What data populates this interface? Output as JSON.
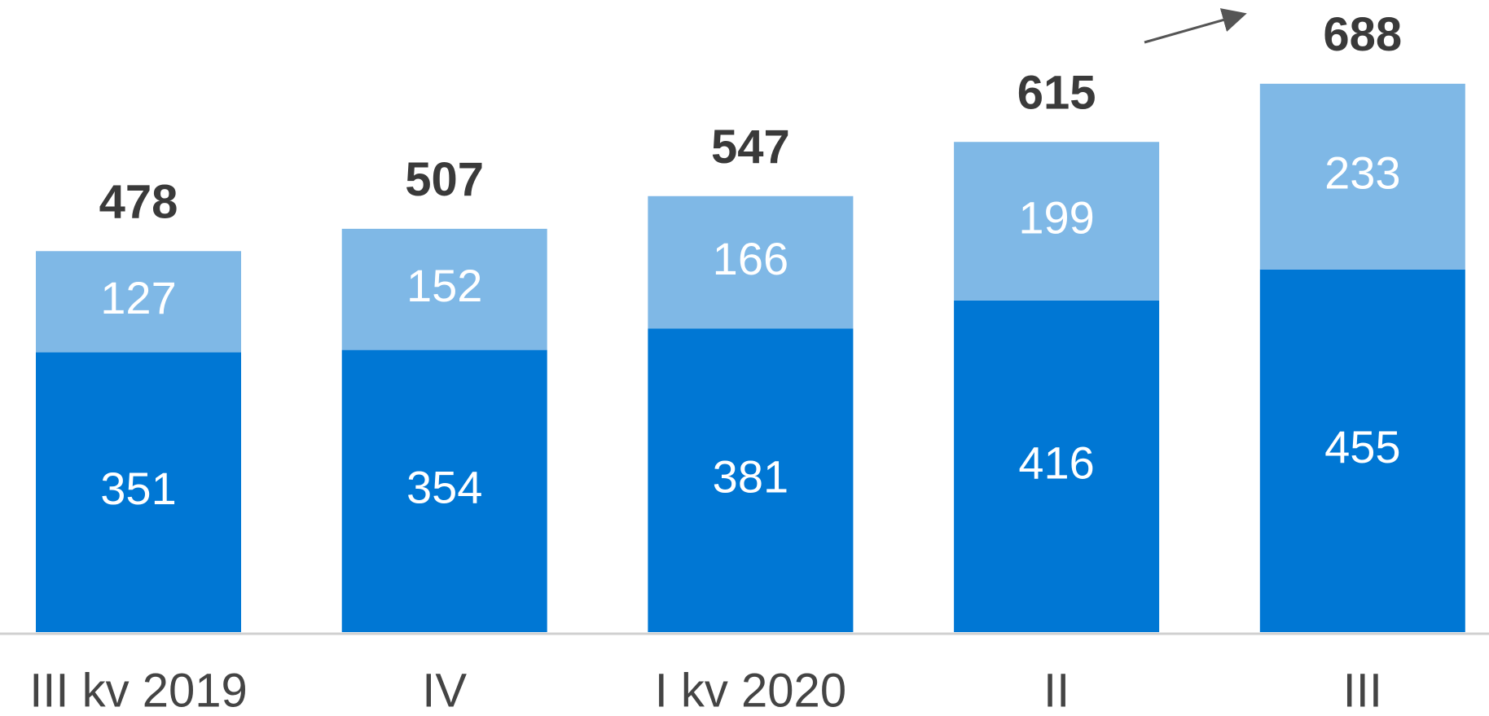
{
  "chart_data": {
    "type": "stacked_bar",
    "categories": [
      "III kv 2019",
      "IV",
      "I kv 2020",
      "II",
      "III"
    ],
    "series": [
      {
        "color": "#0077d4",
        "values": [
          351,
          354,
          381,
          416,
          455
        ]
      },
      {
        "color": "#7fb8e6",
        "values": [
          127,
          152,
          166,
          199,
          233
        ]
      }
    ],
    "totals": [
      478,
      507,
      547,
      615,
      688
    ],
    "ylim": [
      0,
      790
    ]
  }
}
